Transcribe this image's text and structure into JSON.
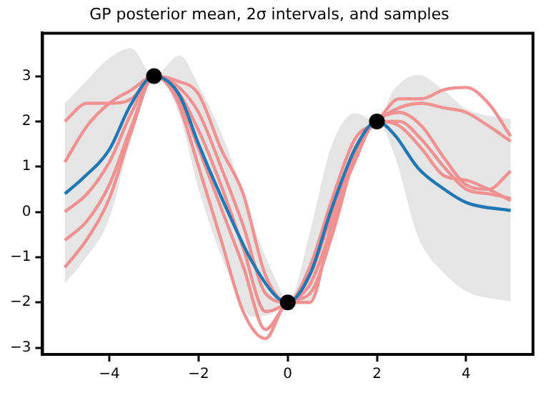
{
  "chart_data": {
    "type": "line",
    "title": "GP posterior mean, 2σ intervals, and samples",
    "xlim": [
      -5.5,
      5.5
    ],
    "ylim": [
      -3.15,
      3.95
    ],
    "xticks": [
      {
        "value": -4,
        "label": "−4"
      },
      {
        "value": -2,
        "label": "−2"
      },
      0,
      2,
      4
    ],
    "yticks": [
      {
        "value": -3,
        "label": "−3"
      },
      {
        "value": -2,
        "label": "−2"
      },
      {
        "value": -1,
        "label": "−1"
      },
      0,
      1,
      2,
      3
    ],
    "grid": false,
    "legend": false,
    "marker": "none",
    "line_style": "solid",
    "series": [
      {
        "color": "#f29191",
        "x": [
          -5,
          -4.5,
          -4,
          -3.5,
          -3,
          -2.5,
          -2,
          -1.5,
          -1,
          -0.5,
          0,
          0.5,
          1,
          1.5,
          2,
          2.5,
          3,
          3.5,
          4,
          4.5,
          5
        ],
        "values": [
          2.0,
          2.4,
          2.4,
          2.5,
          3,
          2.9,
          2.6,
          1.4,
          0.4,
          -1.4,
          -2,
          -1.2,
          0.3,
          1.6,
          2,
          2.5,
          2.5,
          2.7,
          2.75,
          2.4,
          1.67
        ]
      },
      {
        "color": "#f29191",
        "x": [
          -5,
          -4.5,
          -4,
          -3.5,
          -3,
          -2.5,
          -2,
          -1.5,
          -1,
          -0.5,
          0,
          0.5,
          1,
          1.5,
          2,
          2.5,
          3,
          3.5,
          4,
          4.5,
          5
        ],
        "values": [
          1.1,
          1.9,
          2.4,
          2.7,
          3,
          2.8,
          2.2,
          1.0,
          -0.3,
          -1.8,
          -2,
          -1.4,
          0,
          1.4,
          2,
          2.3,
          2.4,
          2.3,
          2.2,
          1.9,
          1.56
        ]
      },
      {
        "color": "#f29191",
        "x": [
          -5,
          -4.5,
          -4,
          -3.5,
          -3,
          -2.5,
          -2,
          -1.5,
          -1,
          -0.5,
          0,
          0.5,
          1,
          1.5,
          2,
          2.5,
          3,
          3.5,
          4,
          4.5,
          5
        ],
        "values": [
          0,
          0.4,
          1.1,
          2.2,
          3,
          2.7,
          1.8,
          0.6,
          -0.8,
          -2.2,
          -2,
          -1.6,
          -0.3,
          1.3,
          2,
          2.2,
          1.9,
          1.2,
          0.6,
          0.5,
          0.9
        ]
      },
      {
        "color": "#f29191",
        "x": [
          -5,
          -4.5,
          -4,
          -3.5,
          -3,
          -2.5,
          -2,
          -1.5,
          -1,
          -0.5,
          0,
          0.5,
          1,
          1.5,
          2,
          2.5,
          3,
          3.5,
          4,
          4.5,
          5
        ],
        "values": [
          -0.63,
          -0.2,
          0.6,
          1.9,
          3,
          2.6,
          1.4,
          0.1,
          -1.2,
          -2.6,
          -2,
          -1.8,
          -0.5,
          1.2,
          2,
          2.0,
          1.6,
          1.0,
          0.5,
          0.4,
          0.3
        ]
      },
      {
        "color": "#f29191",
        "x": [
          -5,
          -4.5,
          -4,
          -3.5,
          -3,
          -2.5,
          -2,
          -1.5,
          -1,
          -0.5,
          0,
          0.5,
          1,
          1.5,
          2,
          2.5,
          3,
          3.5,
          4,
          4.5,
          5
        ],
        "values": [
          -1.23,
          -0.6,
          0.3,
          1.8,
          3,
          2.5,
          1.0,
          -0.6,
          -2.2,
          -2.8,
          -2,
          -2.0,
          -0.2,
          1.1,
          2,
          1.9,
          1.4,
          0.8,
          0.7,
          0.5,
          0.25
        ]
      },
      {
        "color": "#1f77b4",
        "x": [
          -5,
          -4.61,
          -4,
          -3.52,
          -3,
          -2.43,
          -2,
          -1.34,
          -0.79,
          -0.24,
          0,
          0.52,
          0.96,
          1.51,
          2,
          2.38,
          2.93,
          3.48,
          4.02,
          5
        ],
        "values": [
          0.4,
          0.73,
          1.38,
          2.37,
          3,
          2.58,
          1.5,
          0,
          -1.12,
          -1.89,
          -2,
          -1.33,
          0,
          1.39,
          2,
          1.72,
          0.96,
          0.52,
          0.2,
          0.03
        ],
        "lower": [
          -1.58,
          -1.12,
          -0.14,
          1.6,
          3,
          2.15,
          0.5,
          -1.34,
          -2.32,
          -2.2,
          -2,
          -1.98,
          -0.46,
          1.29,
          2,
          1.29,
          -0.57,
          -1.33,
          -1.76,
          -1.98
        ],
        "upper": [
          2.4,
          2.8,
          3.4,
          3.62,
          3,
          3.46,
          2.8,
          1.38,
          -0.25,
          -1.56,
          -2,
          -0.35,
          1.4,
          2.18,
          2,
          2.7,
          3.03,
          2.7,
          2.27,
          2.05
        ]
      },
      {
        "type": "scatter",
        "marker": "circle",
        "color": "#000000",
        "x": [
          -3,
          0,
          2
        ],
        "values": [
          3,
          -2,
          2
        ]
      }
    ]
  }
}
